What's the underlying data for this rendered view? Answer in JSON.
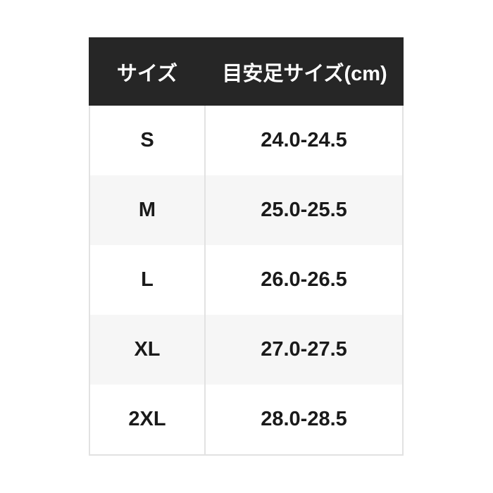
{
  "table": {
    "columns": [
      {
        "label": "サイズ"
      },
      {
        "label": "目安足サイズ(cm)"
      }
    ],
    "rows": [
      {
        "size": "S",
        "range": "24.0-24.5"
      },
      {
        "size": "M",
        "range": "25.0-25.5"
      },
      {
        "size": "L",
        "range": "26.0-26.5"
      },
      {
        "size": "XL",
        "range": "27.0-27.5"
      },
      {
        "size": "2XL",
        "range": "28.0-28.5"
      }
    ],
    "colors": {
      "header_bg": "#262626",
      "header_text": "#ffffff",
      "stripe_bg": "#f6f6f6",
      "border": "#e2e2e2",
      "body_text": "#1a1a1a"
    }
  }
}
